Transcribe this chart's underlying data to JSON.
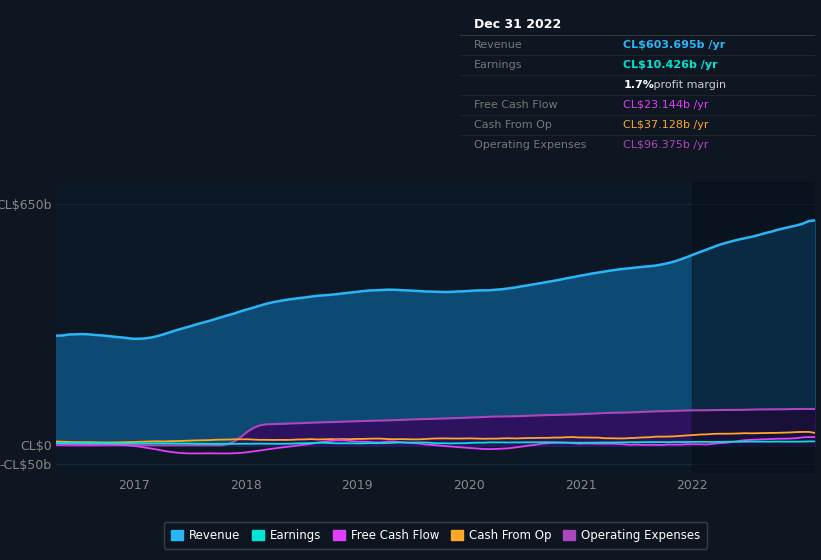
{
  "bg_color": "#0e1621",
  "plot_bg_color": "#0d1826",
  "title_box_bg": "#090d12",
  "title_box_border": "#3a3a3a",
  "date_label": "Dec 31 2022",
  "info_rows": [
    {
      "label": "Revenue",
      "value": "CL$603.695b /yr",
      "value_color": "#29b6f6",
      "bold_value": true
    },
    {
      "label": "Earnings",
      "value": "CL$10.426b /yr",
      "value_color": "#00e5d4",
      "bold_value": true
    },
    {
      "label": "",
      "value": "1.7% profit margin",
      "value_color": "#cccccc",
      "bold_value": false
    },
    {
      "label": "Free Cash Flow",
      "value": "CL$23.144b /yr",
      "value_color": "#e040fb",
      "bold_value": false
    },
    {
      "label": "Cash From Op",
      "value": "CL$37.128b /yr",
      "value_color": "#ffa726",
      "bold_value": false
    },
    {
      "label": "Operating Expenses",
      "value": "CL$96.375b /yr",
      "value_color": "#ab47bc",
      "bold_value": false
    }
  ],
  "ylabel_top": "CL$650b",
  "ylabel_zero": "CL$0",
  "ylabel_neg": "-CL$50b",
  "ylim": [
    -75,
    710
  ],
  "ytick_vals": [
    -50,
    0,
    650
  ],
  "xtick_positions": [
    2017,
    2018,
    2019,
    2020,
    2021,
    2022
  ],
  "xtick_labels": [
    "2017",
    "2018",
    "2019",
    "2020",
    "2021",
    "2022"
  ],
  "xstart": 2016.3,
  "xend": 2023.1,
  "revenue_line_color": "#29b6f6",
  "revenue_fill_color": "#0d4a73",
  "earnings_line_color": "#00e5d4",
  "fcf_line_color": "#e040fb",
  "cashop_line_color": "#ffa726",
  "opex_line_color": "#ab47bc",
  "opex_fill_color": "#2d1260",
  "grid_color": "#1a2a3a",
  "tick_color": "#888888",
  "right_shade_color": "#07101a",
  "legend_items": [
    {
      "label": "Revenue",
      "color": "#29b6f6"
    },
    {
      "label": "Earnings",
      "color": "#00e5d4"
    },
    {
      "label": "Free Cash Flow",
      "color": "#e040fb"
    },
    {
      "label": "Cash From Op",
      "color": "#ffa726"
    },
    {
      "label": "Operating Expenses",
      "color": "#ab47bc"
    }
  ],
  "legend_bg": "#0d1520",
  "legend_border": "#3a4a5a"
}
